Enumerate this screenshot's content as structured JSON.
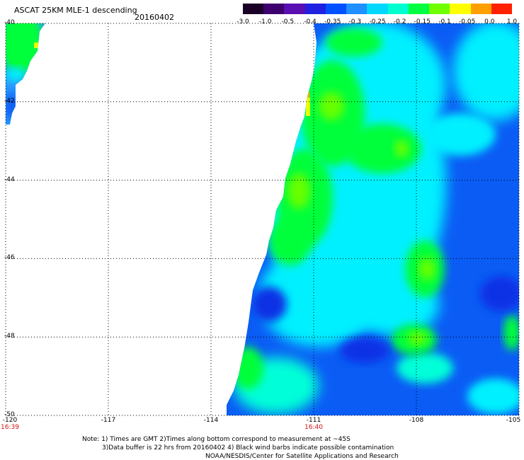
{
  "header": {
    "title": "ASCAT 25KM MLE-1 descending",
    "date": "20160402"
  },
  "colorbar": {
    "labels": [
      "-3.0",
      "-1.0",
      "-0.5",
      "-0.4",
      "-0.35",
      "-0.3",
      "-0.25",
      "-0.2",
      "-0.15",
      "-0.1",
      "-0.05",
      "0.0",
      "1.0"
    ],
    "colors": [
      "#1a0026",
      "#3d006e",
      "#5a0fb0",
      "#2020e0",
      "#0050ff",
      "#1e90ff",
      "#00d8ff",
      "#00ffd0",
      "#00ff40",
      "#70ff00",
      "#ffff00",
      "#ffa000",
      "#ff2000"
    ]
  },
  "map": {
    "lat_labels": [
      "-40",
      "-42",
      "-44",
      "-46",
      "-48",
      "-50"
    ],
    "lon_labels": [
      "-120",
      "-117",
      "-114",
      "-111",
      "-108",
      "-105"
    ],
    "time_labels": [
      "16:39",
      "16:40"
    ],
    "colors": {
      "blue": "#0a5cf5",
      "deep_blue": "#1030e6",
      "light_blue": "#2a9bff",
      "cyan": "#00f0ff",
      "aqua": "#00ffd8",
      "green": "#00ff3a",
      "lime": "#66ff00",
      "yellow": "#e8ff00",
      "orange": "#ffb000",
      "grid": "#000000"
    }
  },
  "notes": {
    "line1": "Note: 1) Times are GMT 2)Times along bottom correspond to measurement at ~45S",
    "line2": "3)Data buffer is 22 hrs from 20160402 4) Black wind barbs indicate possible contamination",
    "line3": "NOAA/NESDIS/Center for Satellite Applications and Research"
  }
}
